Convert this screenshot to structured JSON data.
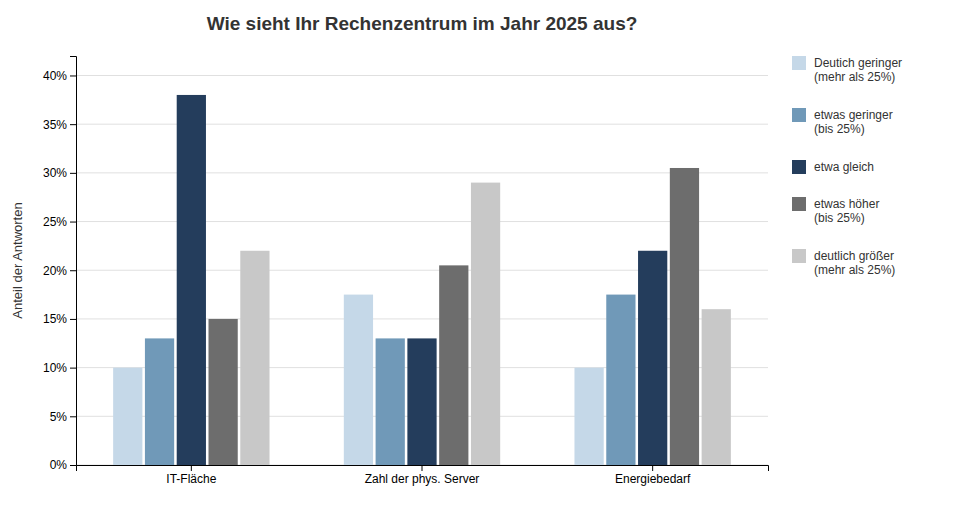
{
  "chart_data": {
    "type": "bar",
    "title": "Wie sieht Ihr Rechenzentrum im Jahr 2025 aus?",
    "categories": [
      "IT-Fläche",
      "Zahl der phys. Server",
      "Energiebedarf"
    ],
    "series": [
      {
        "name": "Deutich geringer\n(mehr als 25%)",
        "color": "#c5d8e8",
        "values": [
          10.0,
          17.5,
          10.0
        ]
      },
      {
        "name": "etwas geringer\n(bis 25%)",
        "color": "#7099b8",
        "values": [
          13.0,
          13.0,
          17.5
        ]
      },
      {
        "name": "etwa gleich",
        "color": "#243d5c",
        "values": [
          38.0,
          13.0,
          22.0
        ]
      },
      {
        "name": "etwas höher\n(bis 25%)",
        "color": "#6d6d6d",
        "values": [
          15.0,
          20.5,
          30.5
        ]
      },
      {
        "name": "deutlich größer\n(mehr als 25%)",
        "color": "#c8c8c8",
        "values": [
          22.0,
          29.0,
          16.0
        ]
      }
    ],
    "ylabel": "Anteil der Antworten",
    "ylim": [
      0,
      42
    ],
    "yticks": [
      {
        "value": 0,
        "label": "0%"
      },
      {
        "value": 5,
        "label": "5%"
      },
      {
        "value": 10,
        "label": "10%"
      },
      {
        "value": 15,
        "label": "15%"
      },
      {
        "value": 20,
        "label": "20%"
      },
      {
        "value": 25,
        "label": "25%"
      },
      {
        "value": 30,
        "label": "30%"
      },
      {
        "value": 35,
        "label": "35%"
      },
      {
        "value": 40,
        "label": "40%"
      }
    ],
    "grid": true,
    "legend": "right"
  }
}
